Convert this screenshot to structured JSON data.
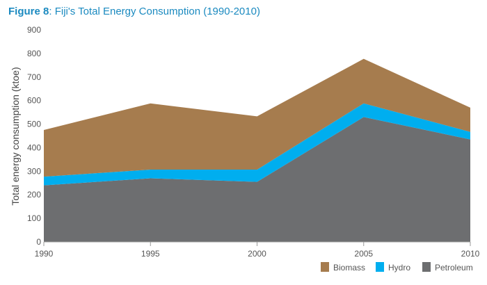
{
  "title": {
    "bold": "Figure 8",
    "rest": ": Fiji's Total Energy Consumption (1990-2010)"
  },
  "chart_data": {
    "type": "area",
    "stacked": true,
    "title": "Figure 8: Fiji's Total Energy Consumption (1990-2010)",
    "xlabel": "",
    "ylabel": "Total energy consumption (ktoe)",
    "categories": [
      "1990",
      "1995",
      "2000",
      "2005",
      "2010"
    ],
    "yticks": [
      "0",
      "100",
      "200",
      "300",
      "400",
      "500",
      "600",
      "700",
      "800",
      "900"
    ],
    "ylim": [
      0,
      900
    ],
    "grid": false,
    "legend_position": "bottom-right",
    "series": [
      {
        "name": "Petroleum",
        "color": "#6d6e70",
        "values": [
          240,
          270,
          255,
          530,
          435
        ]
      },
      {
        "name": "Hydro",
        "color": "#00aeef",
        "values": [
          37,
          37,
          52,
          58,
          32
        ]
      },
      {
        "name": "Biomass",
        "color": "#a67c4e",
        "values": [
          198,
          281,
          226,
          189,
          103
        ]
      }
    ],
    "legend_order": [
      "Biomass",
      "Hydro",
      "Petroleum"
    ]
  }
}
